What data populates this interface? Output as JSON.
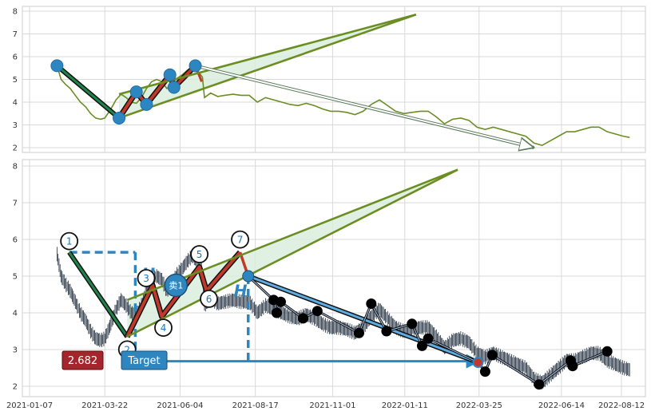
{
  "chart_data": {
    "type": "line",
    "x_tick_labels": [
      "2021-01-07",
      "2021-03-22",
      "2021-06-04",
      "2021-08-17",
      "2021-11-01",
      "2022-01-11",
      "2022-03-25",
      "2022-06-14",
      "2022-08-12"
    ],
    "x_tick_days": [
      0,
      74,
      148,
      222,
      298,
      369,
      442,
      523,
      582
    ],
    "top_panel": {
      "y_ticks": [
        2,
        3,
        4,
        5,
        6,
        7,
        8
      ],
      "ylim": [
        1.8,
        8.2
      ],
      "price_color": "#6b8e23",
      "price_series": [
        [
          27,
          5.6
        ],
        [
          31,
          5.0
        ],
        [
          35,
          4.8
        ],
        [
          40,
          4.6
        ],
        [
          45,
          4.3
        ],
        [
          50,
          4.0
        ],
        [
          55,
          3.8
        ],
        [
          60,
          3.5
        ],
        [
          65,
          3.3
        ],
        [
          70,
          3.25
        ],
        [
          74,
          3.3
        ],
        [
          80,
          3.7
        ],
        [
          85,
          4.1
        ],
        [
          90,
          4.35
        ],
        [
          95,
          4.2
        ],
        [
          100,
          4.0
        ],
        [
          105,
          3.95
        ],
        [
          110,
          4.2
        ],
        [
          115,
          4.6
        ],
        [
          120,
          4.9
        ],
        [
          125,
          5.0
        ],
        [
          130,
          4.9
        ],
        [
          135,
          4.6
        ],
        [
          140,
          4.8
        ],
        [
          145,
          5.05
        ],
        [
          150,
          5.2
        ],
        [
          155,
          5.4
        ],
        [
          160,
          5.55
        ],
        [
          165,
          5.4
        ],
        [
          170,
          5.1
        ],
        [
          172,
          4.2
        ],
        [
          178,
          4.4
        ],
        [
          185,
          4.25
        ],
        [
          192,
          4.3
        ],
        [
          200,
          4.35
        ],
        [
          208,
          4.3
        ],
        [
          216,
          4.3
        ],
        [
          224,
          4.0
        ],
        [
          232,
          4.2
        ],
        [
          240,
          4.1
        ],
        [
          248,
          4.0
        ],
        [
          256,
          3.9
        ],
        [
          264,
          3.85
        ],
        [
          272,
          3.95
        ],
        [
          280,
          3.85
        ],
        [
          288,
          3.7
        ],
        [
          296,
          3.6
        ],
        [
          304,
          3.6
        ],
        [
          312,
          3.55
        ],
        [
          320,
          3.45
        ],
        [
          328,
          3.6
        ],
        [
          336,
          3.9
        ],
        [
          344,
          4.1
        ],
        [
          352,
          3.85
        ],
        [
          360,
          3.6
        ],
        [
          368,
          3.5
        ],
        [
          376,
          3.55
        ],
        [
          384,
          3.6
        ],
        [
          392,
          3.6
        ],
        [
          400,
          3.35
        ],
        [
          408,
          3.05
        ],
        [
          416,
          3.25
        ],
        [
          424,
          3.3
        ],
        [
          432,
          3.2
        ],
        [
          440,
          2.9
        ],
        [
          448,
          2.8
        ],
        [
          456,
          2.9
        ],
        [
          464,
          2.8
        ],
        [
          472,
          2.7
        ],
        [
          480,
          2.6
        ],
        [
          488,
          2.5
        ],
        [
          496,
          2.2
        ],
        [
          504,
          2.1
        ],
        [
          512,
          2.3
        ],
        [
          520,
          2.5
        ],
        [
          528,
          2.7
        ],
        [
          536,
          2.7
        ],
        [
          544,
          2.8
        ],
        [
          552,
          2.9
        ],
        [
          560,
          2.9
        ],
        [
          568,
          2.7
        ],
        [
          576,
          2.6
        ],
        [
          584,
          2.5
        ],
        [
          590,
          2.45
        ]
      ],
      "pivots": [
        [
          27,
          5.6
        ],
        [
          88,
          3.3
        ],
        [
          105,
          4.45
        ],
        [
          115,
          3.9
        ],
        [
          138,
          5.2
        ],
        [
          142,
          4.65
        ],
        [
          163,
          5.6
        ]
      ],
      "wedge_upper": [
        [
          88,
          4.35
        ],
        [
          380,
          7.85
        ]
      ],
      "wedge_lower": [
        [
          88,
          3.3
        ],
        [
          380,
          7.85
        ]
      ],
      "projection": [
        [
          163,
          5.6
        ],
        [
          496,
          2.0
        ]
      ]
    },
    "bottom_panel": {
      "y_ticks": [
        2,
        3,
        4,
        5,
        6,
        7,
        8
      ],
      "ylim": [
        1.8,
        8.2
      ],
      "candle_color": "#1c2a3a",
      "pivots": [
        {
          "label": "1",
          "x": 39,
          "y": 5.65
        },
        {
          "label": "2",
          "x": 96,
          "y": 3.35
        },
        {
          "label": "3",
          "x": 121,
          "y": 4.75
        },
        {
          "label": "4",
          "x": 130,
          "y": 3.9
        },
        {
          "label": "5",
          "x": 167,
          "y": 5.25
        },
        {
          "label": "6",
          "x": 174,
          "y": 4.6
        },
        {
          "label": "7",
          "x": 207,
          "y": 5.65
        }
      ],
      "wedge_upper": [
        [
          96,
          4.35
        ],
        [
          421,
          7.9
        ]
      ],
      "wedge_lower": [
        [
          96,
          3.35
        ],
        [
          421,
          7.9
        ]
      ],
      "h_dashed_level": 5.65,
      "h_dashed_start_x": 39,
      "h_dashed_x": 104,
      "breakout_x": 215,
      "breakout_price": 5.0,
      "target_price": 2.682,
      "target_arrow_end_x": 442,
      "h_label": "H",
      "sell_label": "卖1",
      "sell_point": [
        144,
        4.75
      ],
      "value_badge": "2.682",
      "target_badge": "Target",
      "zigzag_down": [
        [
          215,
          5.0
        ],
        [
          240,
          4.35
        ],
        [
          243,
          4.0
        ],
        [
          247,
          4.3
        ],
        [
          269,
          3.85
        ],
        [
          283,
          4.05
        ],
        [
          324,
          3.45
        ],
        [
          336,
          4.25
        ],
        [
          351,
          3.5
        ],
        [
          376,
          3.7
        ],
        [
          386,
          3.1
        ],
        [
          392,
          3.3
        ],
        [
          441,
          2.65
        ],
        [
          448,
          2.4
        ],
        [
          455,
          2.85
        ],
        [
          501,
          2.05
        ],
        [
          532,
          2.7
        ],
        [
          534,
          2.55
        ],
        [
          568,
          2.95
        ]
      ],
      "black_dots": [
        [
          240,
          4.35
        ],
        [
          243,
          4.0
        ],
        [
          247,
          4.3
        ],
        [
          269,
          3.85
        ],
        [
          283,
          4.05
        ],
        [
          324,
          3.45
        ],
        [
          336,
          4.25
        ],
        [
          351,
          3.5
        ],
        [
          376,
          3.7
        ],
        [
          386,
          3.1
        ],
        [
          392,
          3.3
        ],
        [
          448,
          2.4
        ],
        [
          455,
          2.85
        ],
        [
          501,
          2.05
        ],
        [
          532,
          2.7
        ],
        [
          534,
          2.55
        ],
        [
          568,
          2.95
        ]
      ]
    }
  }
}
